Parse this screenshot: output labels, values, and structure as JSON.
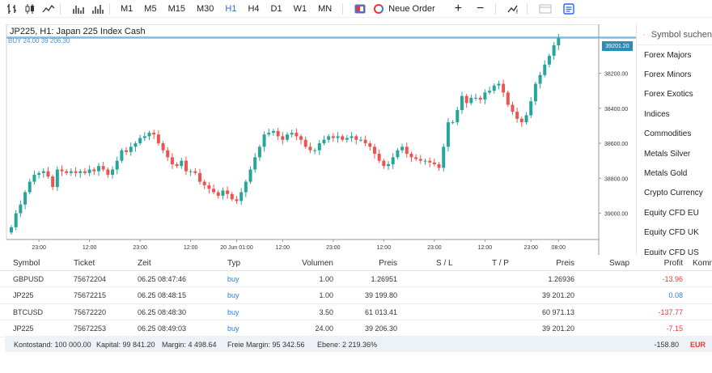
{
  "toolbar": {
    "timeframes": [
      "M1",
      "M5",
      "M15",
      "M30",
      "H1",
      "H4",
      "D1",
      "W1",
      "MN"
    ],
    "active_timeframe": "H1",
    "new_order_label": "Neue Order",
    "plus": "+",
    "minus": "−"
  },
  "chart": {
    "title": "JP225, H1: Japan 225 Index Cash",
    "order_line_label": "BUY 24.00 39 206.30",
    "current_price": "39201.20",
    "price_labels": [
      "39000.00",
      "38800.00",
      "38600.00",
      "38400.00",
      "38200.00"
    ],
    "time_labels": [
      "23:00",
      "12:00",
      "23:00",
      "12:00",
      "20 Jun 01:00",
      "12:00",
      "23:00",
      "12:00",
      "23:00",
      "12:00",
      "23:00",
      "08:00"
    ],
    "colors": {
      "up": "#26a69a",
      "down": "#ef5350",
      "order_line": "#4a90d9",
      "price_box": "#2a8fb8"
    }
  },
  "chart_data": {
    "type": "candlestick",
    "title": "JP225, H1: Japan 225 Index Cash",
    "ylim": [
      38050,
      39280
    ],
    "y_ticks": [
      38200,
      38400,
      38600,
      38800,
      39000
    ],
    "x_tick_labels": [
      "23:00",
      "12:00",
      "23:00",
      "12:00",
      "20 Jun 01:00",
      "12:00",
      "23:00",
      "12:00",
      "23:00",
      "12:00",
      "23:00",
      "08:00"
    ],
    "close": [
      38120,
      38200,
      38250,
      38320,
      38380,
      38420,
      38430,
      38440,
      38410,
      38350,
      38450,
      38440,
      38430,
      38440,
      38430,
      38440,
      38430,
      38450,
      38440,
      38470,
      38450,
      38420,
      38450,
      38500,
      38560,
      38550,
      38580,
      38600,
      38630,
      38640,
      38660,
      38650,
      38600,
      38560,
      38520,
      38480,
      38470,
      38500,
      38440,
      38440,
      38430,
      38380,
      38360,
      38340,
      38320,
      38300,
      38330,
      38310,
      38280,
      38270,
      38320,
      38380,
      38450,
      38520,
      38580,
      38650,
      38660,
      38670,
      38640,
      38620,
      38650,
      38660,
      38640,
      38620,
      38580,
      38560,
      38560,
      38600,
      38620,
      38640,
      38630,
      38640,
      38620,
      38630,
      38640,
      38620,
      38620,
      38600,
      38580,
      38540,
      38500,
      38470,
      38480,
      38520,
      38560,
      38580,
      38540,
      38520,
      38510,
      38500,
      38500,
      38490,
      38480,
      38460,
      38580,
      38720,
      38720,
      38790,
      38870,
      38830,
      38860,
      38860,
      38850,
      38890,
      38900,
      38930,
      38940,
      38890,
      38820,
      38780,
      38740,
      38720,
      38760,
      38840,
      38940,
      38990,
      39050,
      39100,
      39160,
      39201
    ],
    "last_price": 39201.2,
    "order_price": 39206.3
  },
  "symbols": {
    "search_placeholder": "Symbol suchen",
    "items": [
      "Forex Majors",
      "Forex Minors",
      "Forex Exotics",
      "Indices",
      "Commodities",
      "Metals Silver",
      "Metals Gold",
      "Crypto Currency",
      "Equity CFD EU",
      "Equity CFD UK",
      "Equity CFD US"
    ]
  },
  "table": {
    "headers": [
      "Symbol",
      "Ticket",
      "Zeit",
      "Typ",
      "Volumen",
      "Preis",
      "S / L",
      "T / P",
      "Preis",
      "Swap",
      "Profit",
      "Kommentar"
    ],
    "rows": [
      {
        "symbol": "GBPUSD",
        "ticket": "75672204",
        "time": "06.25 08:47:46",
        "type": "buy",
        "volume": "1.00",
        "price": "1.26951",
        "sl": "",
        "tp": "",
        "cur_price": "1.26936",
        "swap": "",
        "profit": "-13.96"
      },
      {
        "symbol": "JP225",
        "ticket": "75672215",
        "time": "06.25 08:48:15",
        "type": "buy",
        "volume": "1.00",
        "price": "39 199.80",
        "sl": "",
        "tp": "",
        "cur_price": "39 201.20",
        "swap": "",
        "profit": "0.08"
      },
      {
        "symbol": "BTCUSD",
        "ticket": "75672220",
        "time": "06.25 08:48:30",
        "type": "buy",
        "volume": "3.50",
        "price": "61 013.41",
        "sl": "",
        "tp": "",
        "cur_price": "60 971.13",
        "swap": "",
        "profit": "-137.77"
      },
      {
        "symbol": "JP225",
        "ticket": "75672253",
        "time": "06.25 08:49:03",
        "type": "buy",
        "volume": "24.00",
        "price": "39 206.30",
        "sl": "",
        "tp": "",
        "cur_price": "39 201.20",
        "swap": "",
        "profit": "-7.15"
      }
    ],
    "summary": {
      "balance": "Kontostand: 100 000.00",
      "equity": "Kapital: 99 841.20",
      "margin": "Margin: 4 498.64",
      "free_margin": "Freie Margin: 95 342.56",
      "level": "Ebene: 2 219.36%",
      "total_profit": "-158.80",
      "currency": "EUR"
    }
  }
}
